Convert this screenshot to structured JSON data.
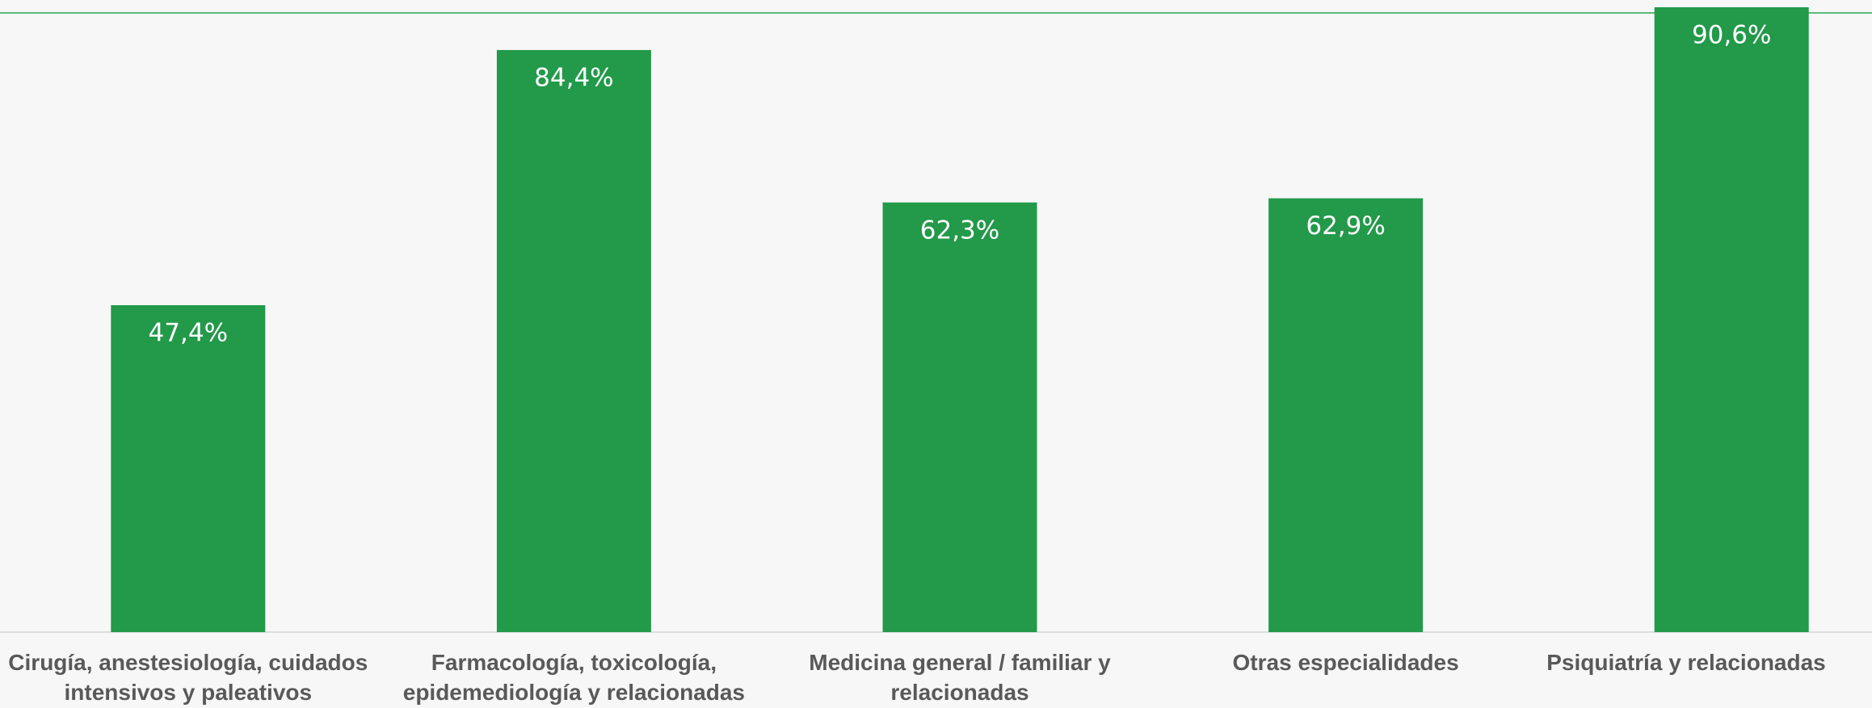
{
  "chart_data": {
    "type": "bar",
    "categories": [
      "Cirugía, anestesiología, cuidados intensivos y paleativos",
      "Farmacología, toxicología, epidemediología y relacionadas",
      "Medicina general / familiar y relacionadas",
      "Otras especialidades",
      "Psiquiatría y relacionadas"
    ],
    "values": [
      47.4,
      84.4,
      62.3,
      62.9,
      90.6
    ],
    "value_labels": [
      "47,4%",
      "84,4%",
      "62,3%",
      "62,9%",
      "90,6%"
    ],
    "color": "#23994a"
  }
}
